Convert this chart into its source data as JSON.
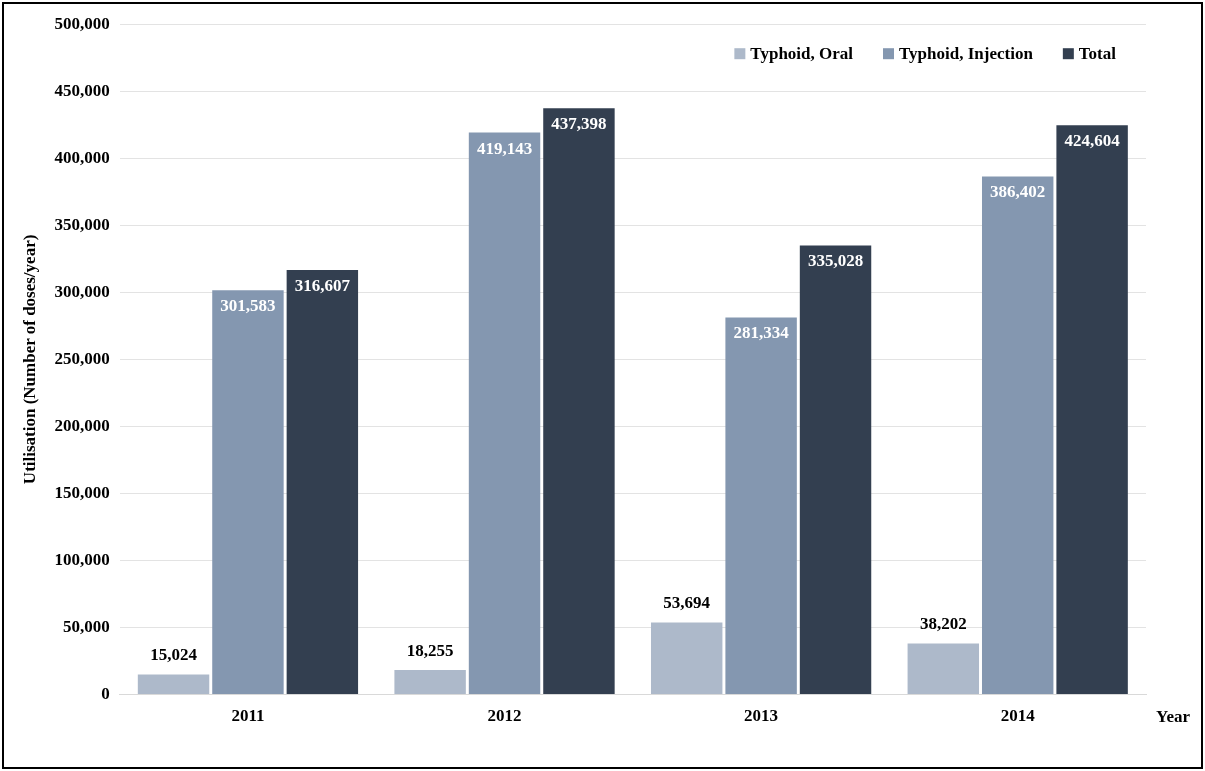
{
  "chart_data": {
    "type": "bar",
    "xlabel": "Year",
    "ylabel": "Utilisation (Number of doses/year)",
    "categories": [
      "2011",
      "2012",
      "2013",
      "2014"
    ],
    "series": [
      {
        "name": "Typhoid, Oral",
        "color": "#adb9ca",
        "values": [
          15024,
          18255,
          53694,
          38202
        ],
        "value_labels": [
          "15,024",
          "18,255",
          "53,694",
          "38,202"
        ]
      },
      {
        "name": "Typhoid, Injection",
        "color": "#8497b0",
        "values": [
          301583,
          419143,
          281334,
          386402
        ],
        "value_labels": [
          "301,583",
          "419,143",
          "281,334",
          "386,402"
        ]
      },
      {
        "name": "Total",
        "color": "#333f50",
        "values": [
          316607,
          437398,
          335028,
          424604
        ],
        "value_labels": [
          "316,607",
          "437,398",
          "335,028",
          "424,604"
        ]
      }
    ],
    "ylim": [
      0,
      500000
    ],
    "yticks": [
      0,
      {
        "value": 50000,
        "label": "50,000"
      },
      {
        "value": 100000,
        "label": "100,000"
      },
      {
        "value": 150000,
        "label": "150,000"
      },
      {
        "value": 200000,
        "label": "200,000"
      },
      {
        "value": 250000,
        "label": "250,000"
      },
      {
        "value": 300000,
        "label": "300,000"
      },
      {
        "value": 350000,
        "label": "350,000"
      },
      {
        "value": 400000,
        "label": "400,000"
      },
      {
        "value": 450000,
        "label": "450,000"
      },
      {
        "value": 500000,
        "label": "500,000"
      }
    ],
    "grid": "y",
    "legend": "top right"
  }
}
